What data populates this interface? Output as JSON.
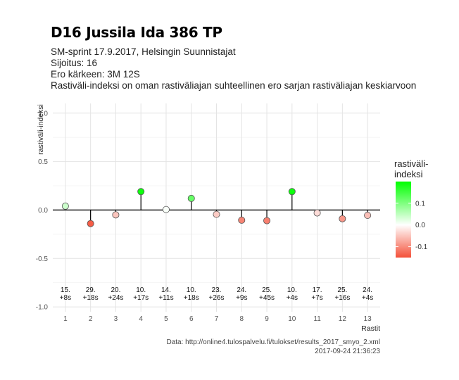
{
  "header": {
    "title": "D16 Jussila Ida 386 TP",
    "subtitle_lines": [
      "SM-sprint 17.9.2017, Helsingin Suunnistajat",
      "Sijoitus: 16",
      "Ero kärkeen: 3M 12S",
      "Rastiväli-indeksi on oman rastiväliajan suhteellinen ero sarjan rastiväliajan keskiarvoon"
    ]
  },
  "caption": {
    "source": "Data: http://online4.tulospalvelu.fi/tulokset/results_2017_smyo_2.xml",
    "timestamp": "2017-09-24 21:36:23"
  },
  "colors": {
    "positive": "#00ff00",
    "neutral": "#ffffff",
    "negative": "#f4513a",
    "grid": "#e4e4e4",
    "baseline": "#000000"
  },
  "chart_data": {
    "type": "scatter",
    "xlabel": "Rastit",
    "ylabel": "rastiväli-indeksi",
    "xlim": [
      0.5,
      13.5
    ],
    "ylim": [
      -1.05,
      1.1
    ],
    "x_ticks": [
      1,
      2,
      3,
      4,
      5,
      6,
      7,
      8,
      9,
      10,
      11,
      12,
      13
    ],
    "y_ticks": [
      1.0,
      0.5,
      0.0,
      -0.5,
      -1.0
    ],
    "y_tick_labels": [
      "1.0",
      "0.5",
      "0.0",
      "-0.5",
      "-1.0"
    ],
    "grid": true,
    "baseline": 0,
    "x": [
      1,
      2,
      3,
      4,
      5,
      6,
      7,
      8,
      9,
      10,
      11,
      12,
      13
    ],
    "values": [
      0.04,
      -0.14,
      -0.05,
      0.19,
      0.005,
      0.12,
      -0.045,
      -0.105,
      -0.11,
      0.19,
      -0.03,
      -0.09,
      -0.055
    ],
    "point_labels": [
      [
        "15.",
        "+8s"
      ],
      [
        "29.",
        "+18s"
      ],
      [
        "20.",
        "+24s"
      ],
      [
        "10.",
        "+17s"
      ],
      [
        "14.",
        "+11s"
      ],
      [
        "10.",
        "+18s"
      ],
      [
        "23.",
        "+26s"
      ],
      [
        "24.",
        "+9s"
      ],
      [
        "25.",
        "+45s"
      ],
      [
        "10.",
        "+4s"
      ],
      [
        "17.",
        "+7s"
      ],
      [
        "25.",
        "+16s"
      ],
      [
        "24.",
        "+4s"
      ]
    ],
    "legend": {
      "title_lines": [
        "rastiväli-",
        "indeksi"
      ],
      "placement": "right",
      "tick_values": [
        0.1,
        0.0,
        -0.1
      ],
      "tick_labels": [
        "0.1",
        "0.0",
        "-0.1"
      ],
      "range": [
        -0.15,
        0.2
      ]
    }
  }
}
